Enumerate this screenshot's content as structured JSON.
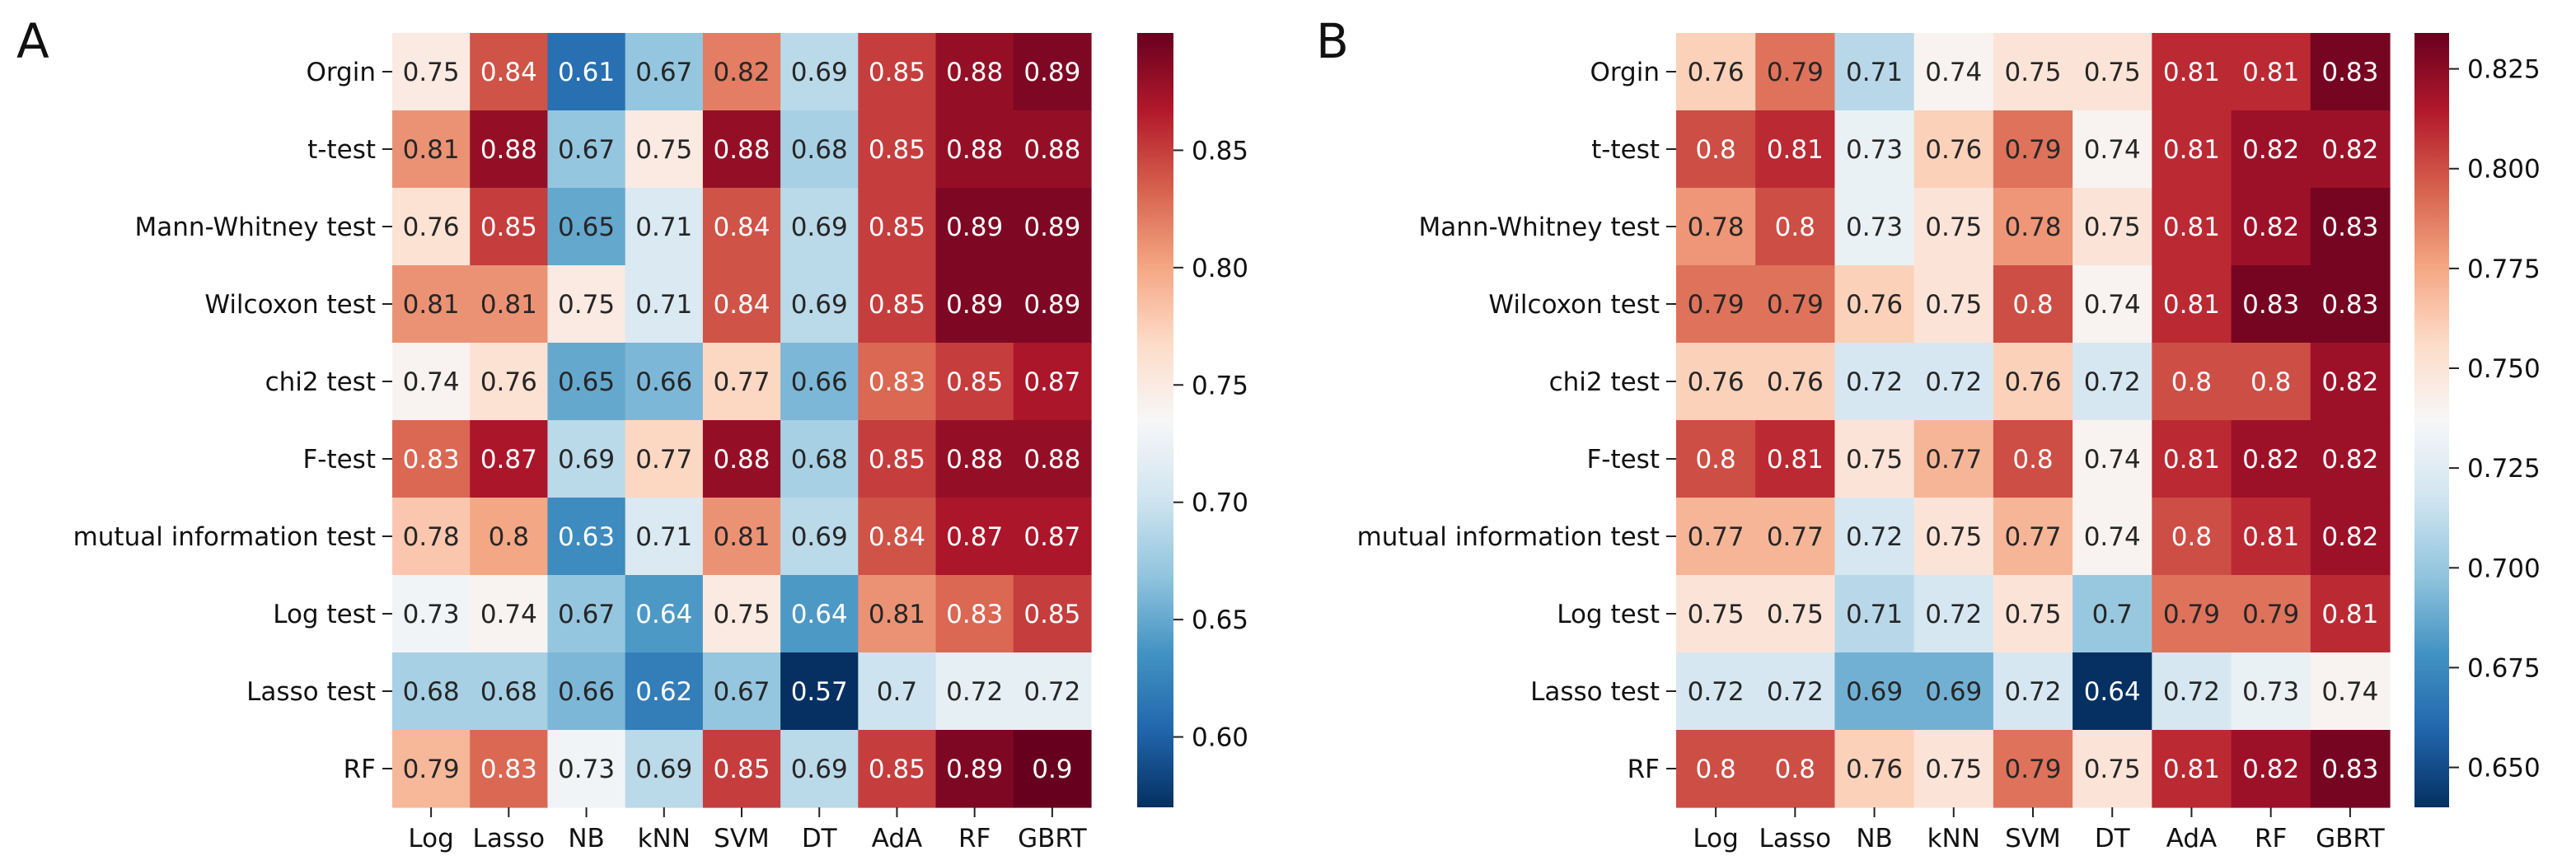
{
  "chart_data": [
    {
      "type": "heatmap",
      "panel_label": "A",
      "rows": [
        "Orgin",
        "t-test",
        "Mann-Whitney test",
        "Wilcoxon test",
        "chi2 test",
        "F-test",
        "mutual information test",
        "Log test",
        "Lasso test",
        "RF"
      ],
      "columns": [
        "Log",
        "Lasso",
        "NB",
        "kNN",
        "SVM",
        "DT",
        "AdA",
        "RF",
        "GBRT"
      ],
      "values": [
        [
          0.75,
          0.84,
          0.61,
          0.67,
          0.82,
          0.69,
          0.85,
          0.88,
          0.89
        ],
        [
          0.81,
          0.88,
          0.67,
          0.75,
          0.88,
          0.68,
          0.85,
          0.88,
          0.88
        ],
        [
          0.76,
          0.85,
          0.65,
          0.71,
          0.84,
          0.69,
          0.85,
          0.89,
          0.89
        ],
        [
          0.81,
          0.81,
          0.75,
          0.71,
          0.84,
          0.69,
          0.85,
          0.89,
          0.89
        ],
        [
          0.74,
          0.76,
          0.65,
          0.66,
          0.77,
          0.66,
          0.83,
          0.85,
          0.87
        ],
        [
          0.83,
          0.87,
          0.69,
          0.77,
          0.88,
          0.68,
          0.85,
          0.88,
          0.88
        ],
        [
          0.78,
          0.8,
          0.63,
          0.71,
          0.81,
          0.69,
          0.84,
          0.87,
          0.87
        ],
        [
          0.73,
          0.74,
          0.67,
          0.64,
          0.75,
          0.64,
          0.81,
          0.83,
          0.85
        ],
        [
          0.68,
          0.68,
          0.66,
          0.62,
          0.67,
          0.57,
          0.7,
          0.72,
          0.72
        ],
        [
          0.79,
          0.83,
          0.73,
          0.69,
          0.85,
          0.69,
          0.85,
          0.89,
          0.9
        ]
      ],
      "colorbar": {
        "range": [
          0.57,
          0.9
        ],
        "ticks": [
          0.6,
          0.65,
          0.7,
          0.75,
          0.8,
          0.85
        ],
        "tick_labels": [
          "0.60",
          "0.65",
          "0.70",
          "0.75",
          "0.80",
          "0.85"
        ],
        "colormap": "RdBu_r"
      }
    },
    {
      "type": "heatmap",
      "panel_label": "B",
      "rows": [
        "Orgin",
        "t-test",
        "Mann-Whitney test",
        "Wilcoxon test",
        "chi2 test",
        "F-test",
        "mutual information test",
        "Log test",
        "Lasso test",
        "RF"
      ],
      "columns": [
        "Log",
        "Lasso",
        "NB",
        "kNN",
        "SVM",
        "DT",
        "AdA",
        "RF",
        "GBRT"
      ],
      "values": [
        [
          0.76,
          0.79,
          0.71,
          0.74,
          0.75,
          0.75,
          0.81,
          0.81,
          0.83
        ],
        [
          0.8,
          0.81,
          0.73,
          0.76,
          0.79,
          0.74,
          0.81,
          0.82,
          0.82
        ],
        [
          0.78,
          0.8,
          0.73,
          0.75,
          0.78,
          0.75,
          0.81,
          0.82,
          0.83
        ],
        [
          0.79,
          0.79,
          0.76,
          0.75,
          0.8,
          0.74,
          0.81,
          0.83,
          0.83
        ],
        [
          0.76,
          0.76,
          0.72,
          0.72,
          0.76,
          0.72,
          0.8,
          0.8,
          0.82
        ],
        [
          0.8,
          0.81,
          0.75,
          0.77,
          0.8,
          0.74,
          0.81,
          0.82,
          0.82
        ],
        [
          0.77,
          0.77,
          0.72,
          0.75,
          0.77,
          0.74,
          0.8,
          0.81,
          0.82
        ],
        [
          0.75,
          0.75,
          0.71,
          0.72,
          0.75,
          0.7,
          0.79,
          0.79,
          0.81
        ],
        [
          0.72,
          0.72,
          0.69,
          0.69,
          0.72,
          0.64,
          0.72,
          0.73,
          0.74
        ],
        [
          0.8,
          0.8,
          0.76,
          0.75,
          0.79,
          0.75,
          0.81,
          0.82,
          0.83
        ]
      ],
      "colorbar": {
        "range": [
          0.64,
          0.834
        ],
        "ticks": [
          0.65,
          0.675,
          0.7,
          0.725,
          0.75,
          0.775,
          0.8,
          0.825
        ],
        "tick_labels": [
          "0.650",
          "0.675",
          "0.700",
          "0.725",
          "0.750",
          "0.775",
          "0.800",
          "0.825"
        ],
        "colormap": "RdBu_r"
      }
    }
  ]
}
